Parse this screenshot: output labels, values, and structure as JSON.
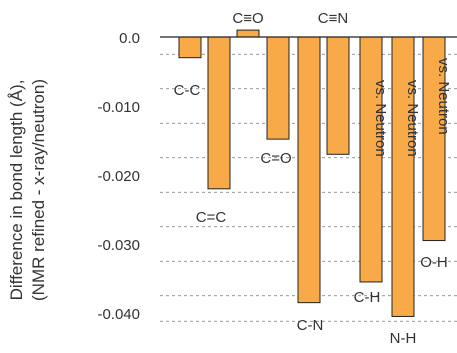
{
  "chart_data": {
    "type": "bar",
    "ylabel_line1": "Difference in bond length (Å),",
    "ylabel_line2": "(NMR refined - x-ray/neutron)",
    "ylim": [
      -0.042,
      0.003
    ],
    "yticks": [
      0.0,
      -0.01,
      -0.02,
      -0.03,
      -0.04
    ],
    "ytick_labels": [
      "0.0",
      "-0.010",
      "-0.020",
      "-0.030",
      "-0.040"
    ],
    "grid": "dashed horizontal",
    "bar_color": "#F8AA48",
    "categories": [
      "C-C",
      "C=C",
      "C≡O",
      "C=O",
      "C-N",
      "C≡N",
      "C-H",
      "N-H",
      "O-H"
    ],
    "values": [
      -0.003,
      -0.022,
      0.001,
      -0.0148,
      -0.0385,
      -0.017,
      -0.0355,
      -0.0405,
      -0.0295
    ],
    "annotations": [
      "",
      "",
      "",
      "",
      "",
      "",
      "vs. Neutron",
      "vs. Neutron",
      "vs. Neutron"
    ]
  }
}
